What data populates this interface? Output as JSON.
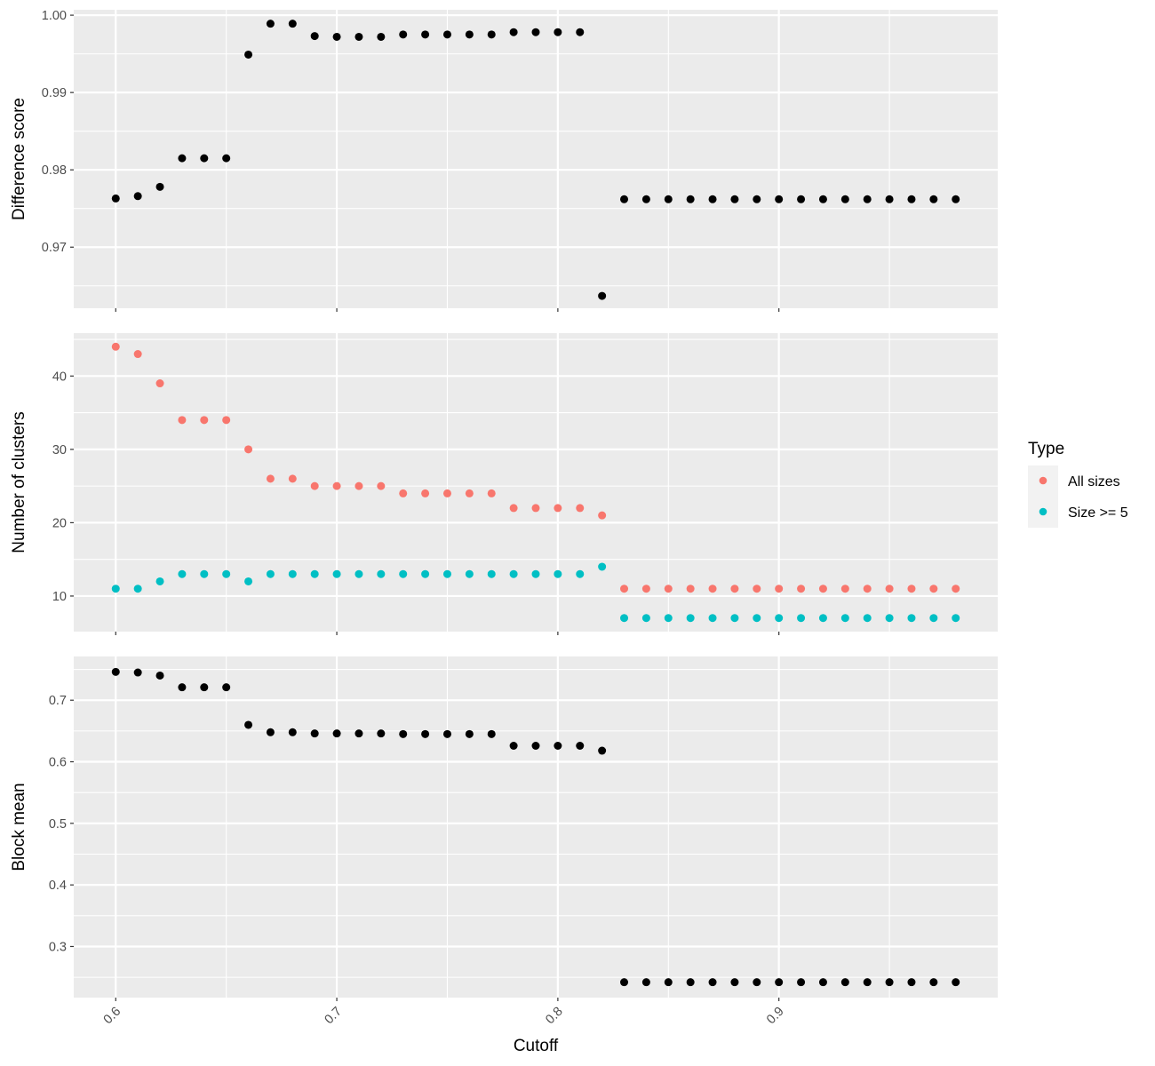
{
  "chart_data": [
    {
      "type": "scatter",
      "ylabel": "Difference score",
      "xlim": [
        0.581,
        0.999
      ],
      "ylim": [
        0.9621,
        1.0007
      ],
      "x_ticks": [
        0.6,
        0.7,
        0.8,
        0.9
      ],
      "y_ticks": [
        "0.97",
        "0.98",
        "0.99",
        "1.00"
      ],
      "grid": true,
      "series": [
        {
          "color": "#000000",
          "points": [
            [
              0.6,
              0.9763
            ],
            [
              0.61,
              0.9766
            ],
            [
              0.62,
              0.9778
            ],
            [
              0.63,
              0.9815
            ],
            [
              0.64,
              0.9815
            ],
            [
              0.65,
              0.9815
            ],
            [
              0.66,
              0.9949
            ],
            [
              0.67,
              0.9989
            ],
            [
              0.68,
              0.9989
            ],
            [
              0.69,
              0.9973
            ],
            [
              0.7,
              0.9972
            ],
            [
              0.71,
              0.9972
            ],
            [
              0.72,
              0.9972
            ],
            [
              0.73,
              0.9975
            ],
            [
              0.74,
              0.9975
            ],
            [
              0.75,
              0.9975
            ],
            [
              0.76,
              0.9975
            ],
            [
              0.77,
              0.9975
            ],
            [
              0.78,
              0.9978
            ],
            [
              0.79,
              0.9978
            ],
            [
              0.8,
              0.9978
            ],
            [
              0.81,
              0.9978
            ],
            [
              0.82,
              0.9637
            ],
            [
              0.83,
              0.9762
            ],
            [
              0.84,
              0.9762
            ],
            [
              0.85,
              0.9762
            ],
            [
              0.86,
              0.9762
            ],
            [
              0.87,
              0.9762
            ],
            [
              0.88,
              0.9762
            ],
            [
              0.89,
              0.9762
            ],
            [
              0.9,
              0.9762
            ],
            [
              0.91,
              0.9762
            ],
            [
              0.92,
              0.9762
            ],
            [
              0.93,
              0.9762
            ],
            [
              0.94,
              0.9762
            ],
            [
              0.95,
              0.9762
            ],
            [
              0.96,
              0.9762
            ],
            [
              0.97,
              0.9762
            ],
            [
              0.98,
              0.9762
            ]
          ]
        }
      ]
    },
    {
      "type": "scatter",
      "ylabel": "Number of clusters",
      "xlim": [
        0.581,
        0.999
      ],
      "ylim": [
        5.15,
        45.85
      ],
      "x_ticks": [
        0.6,
        0.7,
        0.8,
        0.9
      ],
      "y_ticks": [
        "10",
        "20",
        "30",
        "40"
      ],
      "grid": true,
      "series": [
        {
          "name": "All sizes",
          "color": "#F8766D",
          "points": [
            [
              0.6,
              44
            ],
            [
              0.61,
              43
            ],
            [
              0.62,
              39
            ],
            [
              0.63,
              34
            ],
            [
              0.64,
              34
            ],
            [
              0.65,
              34
            ],
            [
              0.66,
              30
            ],
            [
              0.67,
              26
            ],
            [
              0.68,
              26
            ],
            [
              0.69,
              25
            ],
            [
              0.7,
              25
            ],
            [
              0.71,
              25
            ],
            [
              0.72,
              25
            ],
            [
              0.73,
              24
            ],
            [
              0.74,
              24
            ],
            [
              0.75,
              24
            ],
            [
              0.76,
              24
            ],
            [
              0.77,
              24
            ],
            [
              0.78,
              22
            ],
            [
              0.79,
              22
            ],
            [
              0.8,
              22
            ],
            [
              0.81,
              22
            ],
            [
              0.82,
              21
            ],
            [
              0.83,
              11
            ],
            [
              0.84,
              11
            ],
            [
              0.85,
              11
            ],
            [
              0.86,
              11
            ],
            [
              0.87,
              11
            ],
            [
              0.88,
              11
            ],
            [
              0.89,
              11
            ],
            [
              0.9,
              11
            ],
            [
              0.91,
              11
            ],
            [
              0.92,
              11
            ],
            [
              0.93,
              11
            ],
            [
              0.94,
              11
            ],
            [
              0.95,
              11
            ],
            [
              0.96,
              11
            ],
            [
              0.97,
              11
            ],
            [
              0.98,
              11
            ]
          ]
        },
        {
          "name": "Size >= 5",
          "color": "#00BFC4",
          "points": [
            [
              0.6,
              11
            ],
            [
              0.61,
              11
            ],
            [
              0.62,
              12
            ],
            [
              0.63,
              13
            ],
            [
              0.64,
              13
            ],
            [
              0.65,
              13
            ],
            [
              0.66,
              12
            ],
            [
              0.67,
              13
            ],
            [
              0.68,
              13
            ],
            [
              0.69,
              13
            ],
            [
              0.7,
              13
            ],
            [
              0.71,
              13
            ],
            [
              0.72,
              13
            ],
            [
              0.73,
              13
            ],
            [
              0.74,
              13
            ],
            [
              0.75,
              13
            ],
            [
              0.76,
              13
            ],
            [
              0.77,
              13
            ],
            [
              0.78,
              13
            ],
            [
              0.79,
              13
            ],
            [
              0.8,
              13
            ],
            [
              0.81,
              13
            ],
            [
              0.82,
              14
            ],
            [
              0.83,
              7
            ],
            [
              0.84,
              7
            ],
            [
              0.85,
              7
            ],
            [
              0.86,
              7
            ],
            [
              0.87,
              7
            ],
            [
              0.88,
              7
            ],
            [
              0.89,
              7
            ],
            [
              0.9,
              7
            ],
            [
              0.91,
              7
            ],
            [
              0.92,
              7
            ],
            [
              0.93,
              7
            ],
            [
              0.94,
              7
            ],
            [
              0.95,
              7
            ],
            [
              0.96,
              7
            ],
            [
              0.97,
              7
            ],
            [
              0.98,
              7
            ]
          ]
        }
      ]
    },
    {
      "type": "scatter",
      "xlabel": "Cutoff",
      "ylabel": "Block mean",
      "xlim": [
        0.581,
        0.999
      ],
      "ylim": [
        0.217,
        0.771
      ],
      "x_ticks": [
        0.6,
        0.7,
        0.8,
        0.9
      ],
      "x_tick_labels": [
        "0.6",
        "0.7",
        "0.8",
        "0.9"
      ],
      "y_ticks": [
        "0.3",
        "0.4",
        "0.5",
        "0.6",
        "0.7"
      ],
      "grid": true,
      "series": [
        {
          "color": "#000000",
          "points": [
            [
              0.6,
              0.746
            ],
            [
              0.61,
              0.745
            ],
            [
              0.62,
              0.74
            ],
            [
              0.63,
              0.721
            ],
            [
              0.64,
              0.721
            ],
            [
              0.65,
              0.721
            ],
            [
              0.66,
              0.66
            ],
            [
              0.67,
              0.648
            ],
            [
              0.68,
              0.648
            ],
            [
              0.69,
              0.646
            ],
            [
              0.7,
              0.646
            ],
            [
              0.71,
              0.646
            ],
            [
              0.72,
              0.646
            ],
            [
              0.73,
              0.645
            ],
            [
              0.74,
              0.645
            ],
            [
              0.75,
              0.645
            ],
            [
              0.76,
              0.645
            ],
            [
              0.77,
              0.645
            ],
            [
              0.78,
              0.626
            ],
            [
              0.79,
              0.626
            ],
            [
              0.8,
              0.626
            ],
            [
              0.81,
              0.626
            ],
            [
              0.82,
              0.618
            ],
            [
              0.83,
              0.242
            ],
            [
              0.84,
              0.242
            ],
            [
              0.85,
              0.242
            ],
            [
              0.86,
              0.242
            ],
            [
              0.87,
              0.242
            ],
            [
              0.88,
              0.242
            ],
            [
              0.89,
              0.242
            ],
            [
              0.9,
              0.242
            ],
            [
              0.91,
              0.242
            ],
            [
              0.92,
              0.242
            ],
            [
              0.93,
              0.242
            ],
            [
              0.94,
              0.242
            ],
            [
              0.95,
              0.242
            ],
            [
              0.96,
              0.242
            ],
            [
              0.97,
              0.242
            ],
            [
              0.98,
              0.242
            ]
          ]
        }
      ]
    }
  ],
  "legend": {
    "title": "Type",
    "placement": "right",
    "items": [
      {
        "label": "All sizes",
        "color": "#F8766D"
      },
      {
        "label": "Size >= 5",
        "color": "#00BFC4"
      }
    ]
  },
  "colors": {
    "panel_background": "#EBEBEB",
    "gridline": "#FFFFFF",
    "tick_text": "#4D4D4D",
    "axis_title": "#000000"
  }
}
